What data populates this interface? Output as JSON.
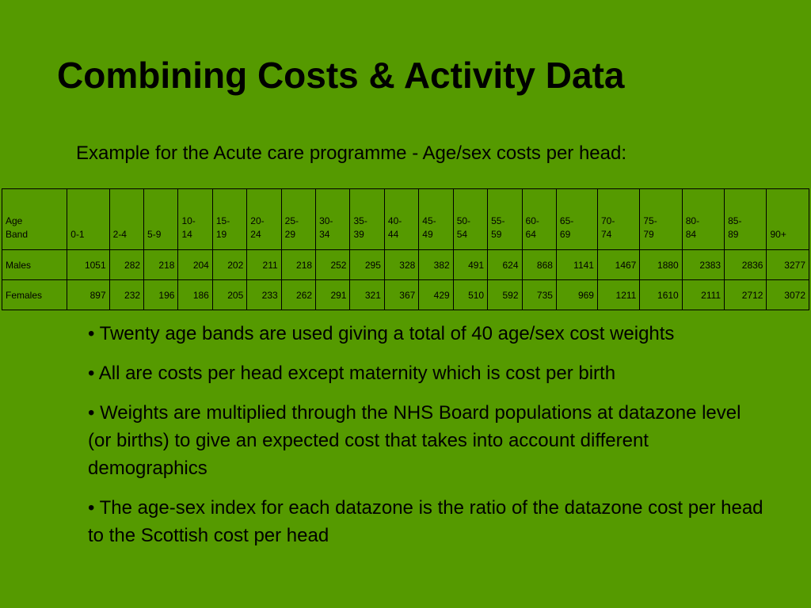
{
  "title": "Combining Costs & Activity Data",
  "subtitle": "Example for the Acute care programme - Age/sex costs per head:",
  "table": {
    "header_label": [
      "Age",
      "Band"
    ],
    "bands": [
      [
        "0-1"
      ],
      [
        "2-4"
      ],
      [
        "5-9"
      ],
      [
        "10-",
        "14"
      ],
      [
        "15-",
        "19"
      ],
      [
        "20-",
        "24"
      ],
      [
        "25-",
        "29"
      ],
      [
        "30-",
        "34"
      ],
      [
        "35-",
        "39"
      ],
      [
        "40-",
        "44"
      ],
      [
        "45-",
        "49"
      ],
      [
        "50-",
        "54"
      ],
      [
        "55-",
        "59"
      ],
      [
        "60-",
        "64"
      ],
      [
        "65-",
        "69"
      ],
      [
        "70-",
        "74"
      ],
      [
        "75-",
        "79"
      ],
      [
        "80-",
        "84"
      ],
      [
        "85-",
        "89"
      ],
      [
        "90+"
      ]
    ],
    "rows": [
      {
        "label": "Males",
        "values": [
          "1051",
          "282",
          "218",
          "204",
          "202",
          "211",
          "218",
          "252",
          "295",
          "328",
          "382",
          "491",
          "624",
          "868",
          "1141",
          "1467",
          "1880",
          "2383",
          "2836",
          "3277"
        ]
      },
      {
        "label": "Females",
        "values": [
          "897",
          "232",
          "196",
          "186",
          "205",
          "233",
          "262",
          "291",
          "321",
          "367",
          "429",
          "510",
          "592",
          "735",
          "969",
          "1211",
          "1610",
          "2111",
          "2712",
          "3072"
        ]
      }
    ]
  },
  "bullets": [
    "• Twenty age bands are used giving a total of 40 age/sex cost weights",
    "• All are costs per head except maternity which is cost per birth",
    "• Weights are multiplied through the NHS Board populations at datazone level (or births) to give an expected cost that takes into account different demographics",
    "• The age-sex index for each datazone is the ratio of the datazone cost per head to the Scottish cost per head"
  ]
}
